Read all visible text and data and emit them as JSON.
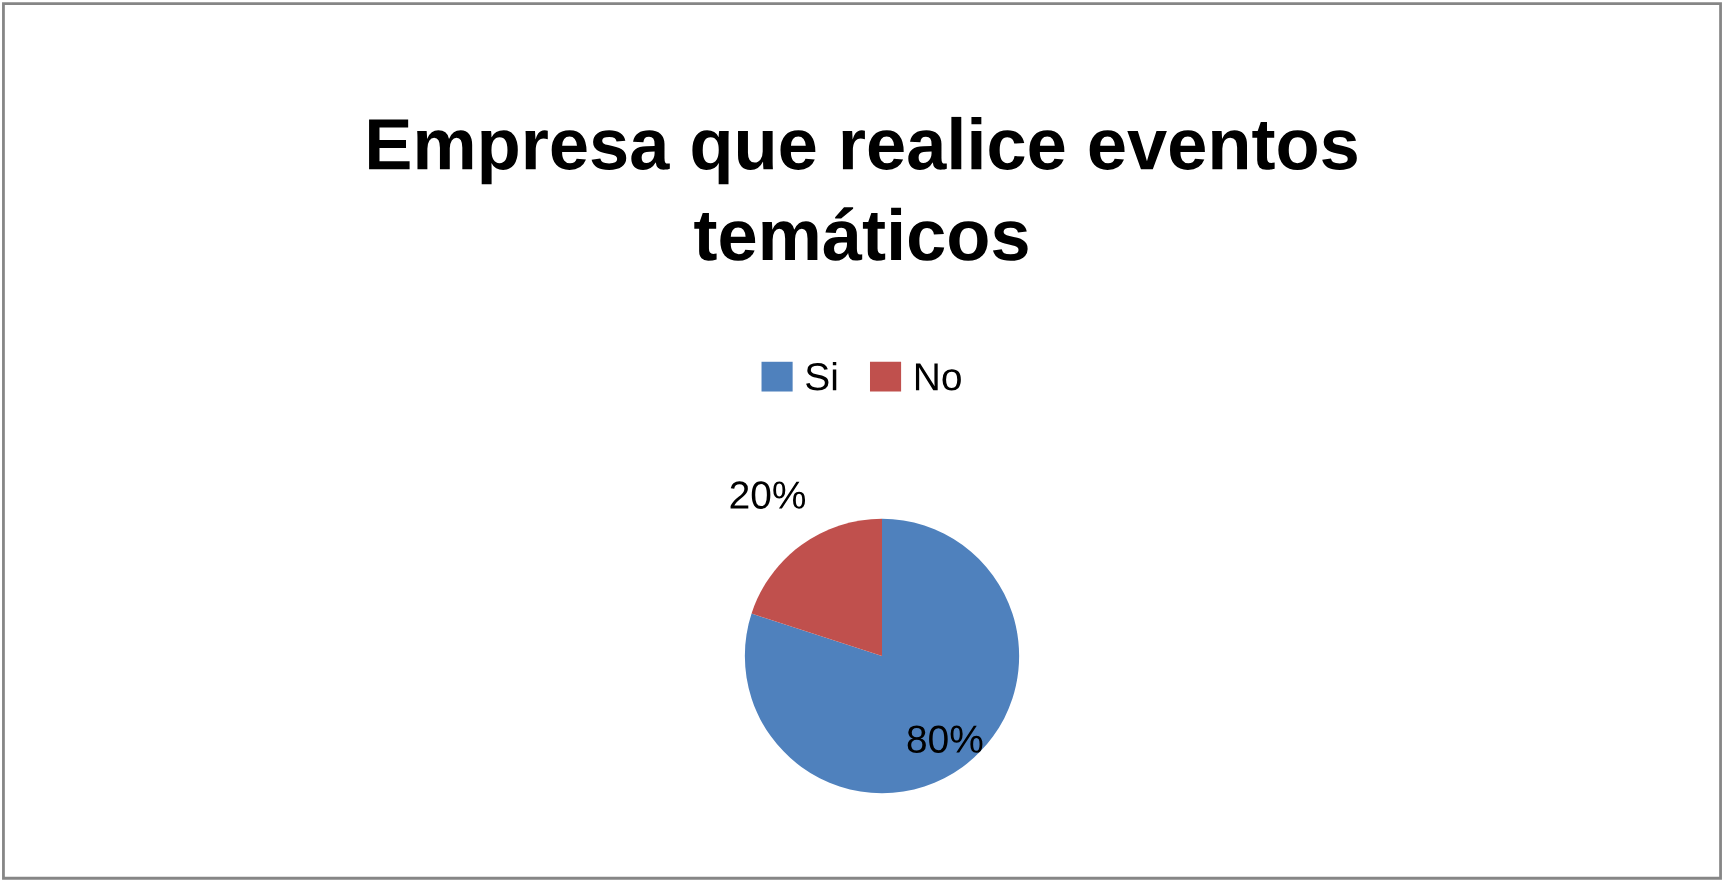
{
  "chart_data": {
    "type": "pie",
    "title": "Empresa que realice eventos\ntemáticos",
    "categories": [
      "Si",
      "No"
    ],
    "values": [
      80,
      20
    ],
    "value_labels": [
      "80%",
      "20%"
    ],
    "colors": [
      "#4f81bd",
      "#c0504d"
    ],
    "legend": "top"
  }
}
